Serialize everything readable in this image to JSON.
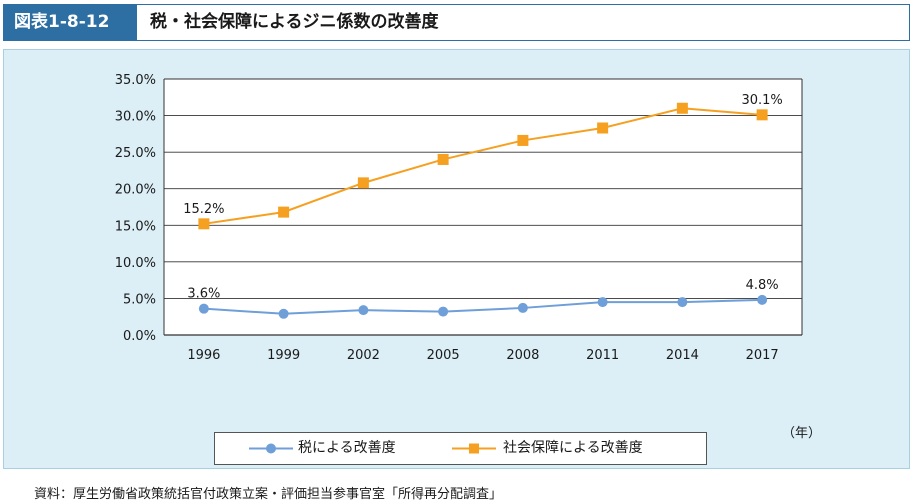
{
  "header": {
    "tag": "図表1-8-12",
    "title": "税・社会保障によるジニ係数の改善度"
  },
  "source": "資料：厚生労働省政策統括官付政策立案・評価担当参事官室「所得再分配調査」",
  "chart_data": {
    "type": "line",
    "x": [
      "1996",
      "1999",
      "2002",
      "2005",
      "2008",
      "2011",
      "2014",
      "2017"
    ],
    "xlabel": "（年）",
    "ylabel": "",
    "ylim": [
      0,
      35
    ],
    "yticks": [
      "0.0%",
      "5.0%",
      "10.0%",
      "15.0%",
      "20.0%",
      "25.0%",
      "30.0%",
      "35.0%"
    ],
    "grid": true,
    "legend_position": "bottom",
    "series": [
      {
        "name": "税による改善度",
        "color": "#6f9fd8",
        "marker": "circle",
        "values": [
          3.6,
          2.9,
          3.4,
          3.2,
          3.7,
          4.5,
          4.5,
          4.8
        ],
        "data_labels": [
          {
            "index": 0,
            "text": "3.6%"
          },
          {
            "index": 7,
            "text": "4.8%"
          }
        ]
      },
      {
        "name": "社会保障による改善度",
        "color": "#f5a020",
        "marker": "square",
        "values": [
          15.2,
          16.8,
          20.8,
          24.0,
          26.6,
          28.3,
          31.0,
          30.1
        ],
        "data_labels": [
          {
            "index": 0,
            "text": "15.2%"
          },
          {
            "index": 7,
            "text": "30.1%"
          }
        ]
      }
    ]
  }
}
